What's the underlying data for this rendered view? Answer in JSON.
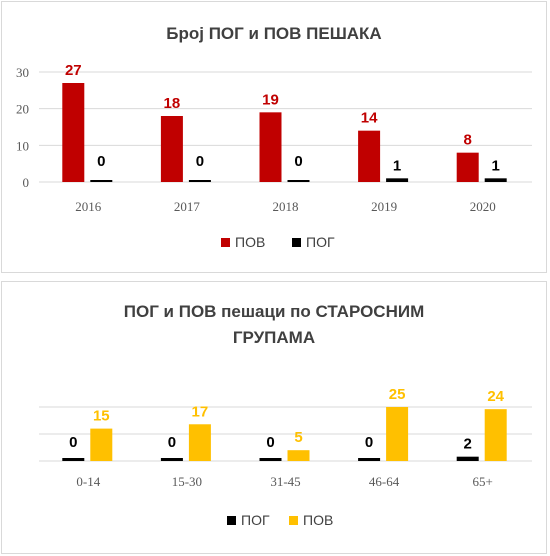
{
  "chart_data": [
    {
      "type": "bar",
      "title": "Број ПОГ и ПОВ ПЕШАКА",
      "categories": [
        "2016",
        "2017",
        "2018",
        "2019",
        "2020"
      ],
      "series": [
        {
          "name": "ПОВ",
          "values": [
            27,
            18,
            19,
            14,
            8
          ],
          "color": "#c00000",
          "label_color": "#c00000"
        },
        {
          "name": "ПОГ",
          "values": [
            0,
            0,
            0,
            1,
            1
          ],
          "color": "#000000",
          "label_color": "#000000"
        }
      ],
      "ylim": [
        0,
        30
      ],
      "yticks": [
        0,
        10,
        20,
        30
      ],
      "grid": true,
      "legend": "bottom"
    },
    {
      "type": "bar",
      "title": "ПОГ  и ПОВ пешаци по СТАРОСНИМ ГРУПАМА",
      "title_lines": [
        "ПОГ  и ПОВ пешаци по СТАРОСНИМ",
        "ГРУПАМА"
      ],
      "categories": [
        "0-14",
        "15-30",
        "31-45",
        "46-64",
        "65+"
      ],
      "series": [
        {
          "name": "ПОГ",
          "values": [
            0,
            0,
            0,
            0,
            2
          ],
          "color": "#000000",
          "label_color": "#000000"
        },
        {
          "name": "ПОВ",
          "values": [
            15,
            17,
            5,
            25,
            24
          ],
          "color": "#ffc000",
          "label_color": "#ffc000"
        }
      ],
      "ylim": [
        0,
        25
      ],
      "grid": true,
      "legend": "bottom"
    }
  ]
}
